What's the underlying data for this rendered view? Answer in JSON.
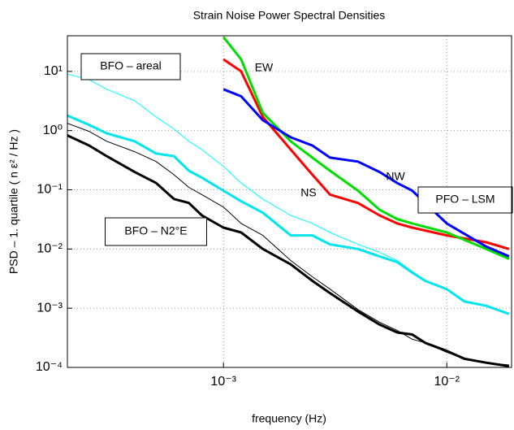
{
  "chart_data": {
    "type": "line",
    "title": "Strain Noise Power Spectral Densities",
    "x_label": "frequency (Hz)",
    "y_label": "PSD – 1. quartile ( n ε² / Hz )",
    "log_x": true,
    "log_y": true,
    "grid": true,
    "xlim": [
      0.0002,
      0.0195
    ],
    "ylim": [
      0.0001,
      40
    ],
    "xticks": [
      {
        "value": 0.001,
        "label": "10⁻³"
      },
      {
        "value": 0.01,
        "label": "10⁻²"
      }
    ],
    "yticks": [
      {
        "value": 0.0001,
        "label": "10⁻⁴"
      },
      {
        "value": 0.001,
        "label": "10⁻³"
      },
      {
        "value": 0.01,
        "label": "10⁻²"
      },
      {
        "value": 0.1,
        "label": "10⁻¹"
      },
      {
        "value": 1,
        "label": "10⁰"
      },
      {
        "value": 10,
        "label": "10¹"
      }
    ],
    "annotations": [
      {
        "text": "BFO – areal",
        "boxed": true
      },
      {
        "text": "BFO – N2°E",
        "boxed": true
      },
      {
        "text": "PFO – LSM",
        "boxed": true
      },
      {
        "text": "EW",
        "boxed": false
      },
      {
        "text": "NS",
        "boxed": false
      },
      {
        "text": "NW",
        "boxed": false
      }
    ],
    "series": [
      {
        "color": "#00ffff",
        "width": 1,
        "x": [
          0.0002,
          0.00025,
          0.0003,
          0.0004,
          0.0005,
          0.0006,
          0.0007,
          0.0008,
          0.001,
          0.0012,
          0.0015,
          0.002,
          0.0025,
          0.003,
          0.004,
          0.005,
          0.006,
          0.007,
          0.008,
          0.01,
          0.012,
          0.015,
          0.019
        ],
        "values": [
          9,
          7.3,
          5,
          3.2,
          1.7,
          1.07,
          0.66,
          0.48,
          0.25,
          0.13,
          0.07,
          0.037,
          0.027,
          0.019,
          0.012,
          0.0088,
          0.0064,
          0.0042,
          0.003,
          0.0021,
          0.0013,
          0.0011,
          0.0008
        ]
      },
      {
        "color": "#00e5ee",
        "width": 3,
        "x": [
          0.0002,
          0.00025,
          0.0003,
          0.0004,
          0.0005,
          0.0006,
          0.0007,
          0.0008,
          0.001,
          0.0012,
          0.0015,
          0.002,
          0.0025,
          0.003,
          0.004,
          0.005,
          0.006,
          0.007,
          0.008,
          0.01,
          0.012,
          0.015,
          0.019
        ],
        "values": [
          1.8,
          1.25,
          0.9,
          0.66,
          0.41,
          0.37,
          0.21,
          0.16,
          0.097,
          0.064,
          0.041,
          0.017,
          0.017,
          0.012,
          0.01,
          0.0075,
          0.006,
          0.004,
          0.0029,
          0.0021,
          0.0013,
          0.0011,
          0.0008
        ]
      },
      {
        "color": "#000000",
        "width": 1,
        "x": [
          0.0002,
          0.00025,
          0.0003,
          0.0004,
          0.0005,
          0.0006,
          0.0007,
          0.0008,
          0.001,
          0.0012,
          0.0015,
          0.002,
          0.0025,
          0.003,
          0.004,
          0.005,
          0.006,
          0.007,
          0.008,
          0.01,
          0.012,
          0.015,
          0.019
        ],
        "values": [
          1.33,
          0.97,
          0.66,
          0.44,
          0.3,
          0.18,
          0.11,
          0.083,
          0.051,
          0.027,
          0.017,
          0.0064,
          0.0034,
          0.0021,
          0.00095,
          0.00058,
          0.00042,
          0.0003,
          0.00026,
          0.00018,
          0.00014,
          0.00012,
          0.00011
        ]
      },
      {
        "color": "#000000",
        "width": 3,
        "x": [
          0.0002,
          0.00025,
          0.0003,
          0.0004,
          0.0005,
          0.0006,
          0.0007,
          0.0008,
          0.001,
          0.0012,
          0.0015,
          0.002,
          0.0025,
          0.003,
          0.004,
          0.005,
          0.006,
          0.007,
          0.008,
          0.01,
          0.012,
          0.015,
          0.019
        ],
        "values": [
          0.83,
          0.56,
          0.37,
          0.2,
          0.13,
          0.07,
          0.06,
          0.037,
          0.023,
          0.019,
          0.01,
          0.0055,
          0.0029,
          0.0018,
          0.00088,
          0.00053,
          0.00039,
          0.00036,
          0.00026,
          0.00019,
          0.00014,
          0.00012,
          0.000105
        ]
      },
      {
        "color": "#ff0000",
        "width": 3,
        "x": [
          0.001,
          0.0012,
          0.0015,
          0.002,
          0.0025,
          0.003,
          0.004,
          0.005,
          0.006,
          0.007,
          0.01,
          0.015,
          0.019
        ],
        "values": [
          16,
          10,
          1.7,
          0.48,
          0.18,
          0.083,
          0.06,
          0.037,
          0.027,
          0.023,
          0.017,
          0.013,
          0.01
        ]
      },
      {
        "color": "#00dd00",
        "width": 3,
        "x": [
          0.001,
          0.0012,
          0.0015,
          0.002,
          0.0025,
          0.003,
          0.004,
          0.005,
          0.006,
          0.007,
          0.01,
          0.015,
          0.019
        ],
        "values": [
          38,
          16,
          2,
          0.66,
          0.35,
          0.21,
          0.097,
          0.046,
          0.032,
          0.027,
          0.019,
          0.01,
          0.0068
        ]
      },
      {
        "color": "#0000ff",
        "width": 3,
        "x": [
          0.001,
          0.0012,
          0.0015,
          0.002,
          0.0025,
          0.003,
          0.004,
          0.005,
          0.006,
          0.007,
          0.01,
          0.015,
          0.019
        ],
        "values": [
          5,
          3.8,
          1.5,
          0.77,
          0.56,
          0.35,
          0.3,
          0.2,
          0.13,
          0.097,
          0.027,
          0.011,
          0.0075
        ]
      }
    ]
  }
}
